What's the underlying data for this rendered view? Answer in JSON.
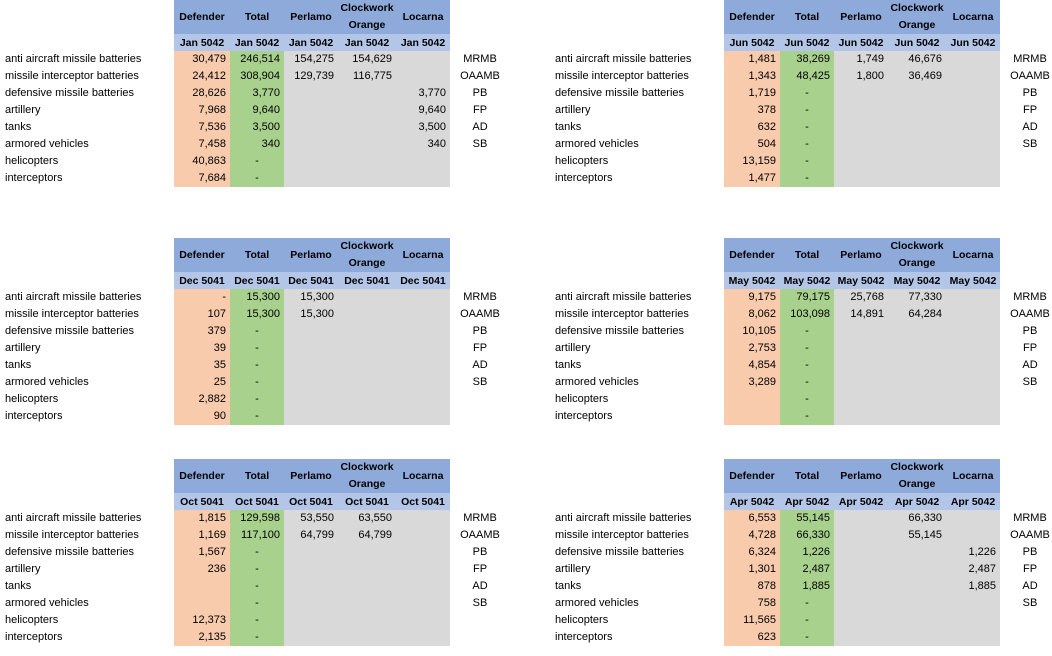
{
  "colors": {
    "header": "#8eaadb",
    "subheader": "#b4c6e7",
    "defender": "#f8cbad",
    "total": "#a9d18e",
    "grey": "#d9d9d9"
  },
  "row_labels": [
    "anti aircraft missile batteries",
    "missile interceptor batteries",
    "defensive missile batteries",
    "artillery",
    "tanks",
    "armored vehicles",
    "helicopters",
    "interceptors"
  ],
  "abbreviations": [
    "MRMB",
    "OAAMB",
    "PB",
    "FP",
    "AD",
    "SB"
  ],
  "column_headers": [
    "Defender",
    "Total",
    "Perlamo",
    "Clockwork Orange",
    "Locarna"
  ],
  "tables": [
    {
      "period": "Jan 5042",
      "rows": [
        [
          "30,479",
          "246,514",
          "154,275",
          "154,629",
          ""
        ],
        [
          "24,412",
          "308,904",
          "129,739",
          "116,775",
          ""
        ],
        [
          "28,626",
          "3,770",
          "",
          "",
          "3,770"
        ],
        [
          "7,968",
          "9,640",
          "",
          "",
          "9,640"
        ],
        [
          "7,536",
          "3,500",
          "",
          "",
          "3,500"
        ],
        [
          "7,458",
          "340",
          "",
          "",
          "340"
        ],
        [
          "40,863",
          "-",
          "",
          "",
          ""
        ],
        [
          "7,684",
          "-",
          "",
          "",
          ""
        ]
      ]
    },
    {
      "period": "Jun 5042",
      "rows": [
        [
          "1,481",
          "38,269",
          "1,749",
          "46,676",
          ""
        ],
        [
          "1,343",
          "48,425",
          "1,800",
          "36,469",
          ""
        ],
        [
          "1,719",
          "-",
          "",
          "",
          ""
        ],
        [
          "378",
          "-",
          "",
          "",
          ""
        ],
        [
          "632",
          "-",
          "",
          "",
          ""
        ],
        [
          "504",
          "-",
          "",
          "",
          ""
        ],
        [
          "13,159",
          "-",
          "",
          "",
          ""
        ],
        [
          "1,477",
          "-",
          "",
          "",
          ""
        ]
      ]
    },
    {
      "period": "Dec 5041",
      "rows": [
        [
          "-",
          "15,300",
          "15,300",
          "",
          ""
        ],
        [
          "107",
          "15,300",
          "15,300",
          "",
          ""
        ],
        [
          "379",
          "-",
          "",
          "",
          ""
        ],
        [
          "39",
          "-",
          "",
          "",
          ""
        ],
        [
          "35",
          "-",
          "",
          "",
          ""
        ],
        [
          "25",
          "-",
          "",
          "",
          ""
        ],
        [
          "2,882",
          "-",
          "",
          "",
          ""
        ],
        [
          "90",
          "-",
          "",
          "",
          ""
        ]
      ]
    },
    {
      "period": "May 5042",
      "rows": [
        [
          "9,175",
          "79,175",
          "25,768",
          "77,330",
          ""
        ],
        [
          "8,062",
          "103,098",
          "14,891",
          "64,284",
          ""
        ],
        [
          "10,105",
          "-",
          "",
          "",
          ""
        ],
        [
          "2,753",
          "-",
          "",
          "",
          ""
        ],
        [
          "4,854",
          "-",
          "",
          "",
          ""
        ],
        [
          "3,289",
          "-",
          "",
          "",
          ""
        ],
        [
          "",
          "-",
          "",
          "",
          ""
        ],
        [
          "",
          "-",
          "",
          "",
          ""
        ]
      ]
    },
    {
      "period": "Oct 5041",
      "rows": [
        [
          "1,815",
          "129,598",
          "53,550",
          "63,550",
          ""
        ],
        [
          "1,169",
          "117,100",
          "64,799",
          "64,799",
          ""
        ],
        [
          "1,567",
          "-",
          "",
          "",
          ""
        ],
        [
          "236",
          "-",
          "",
          "",
          ""
        ],
        [
          "",
          "-",
          "",
          "",
          ""
        ],
        [
          "",
          "-",
          "",
          "",
          ""
        ],
        [
          "12,373",
          "-",
          "",
          "",
          ""
        ],
        [
          "2,135",
          "-",
          "",
          "",
          ""
        ]
      ]
    },
    {
      "period": "Apr 5042",
      "rows": [
        [
          "6,553",
          "55,145",
          "",
          "66,330",
          ""
        ],
        [
          "4,728",
          "66,330",
          "",
          "55,145",
          ""
        ],
        [
          "6,324",
          "1,226",
          "",
          "",
          "1,226"
        ],
        [
          "1,301",
          "2,487",
          "",
          "",
          "2,487"
        ],
        [
          "878",
          "1,885",
          "",
          "",
          "1,885"
        ],
        [
          "758",
          "-",
          "",
          "",
          ""
        ],
        [
          "11,565",
          "-",
          "",
          "",
          ""
        ],
        [
          "623",
          "-",
          "",
          "",
          ""
        ]
      ]
    }
  ]
}
